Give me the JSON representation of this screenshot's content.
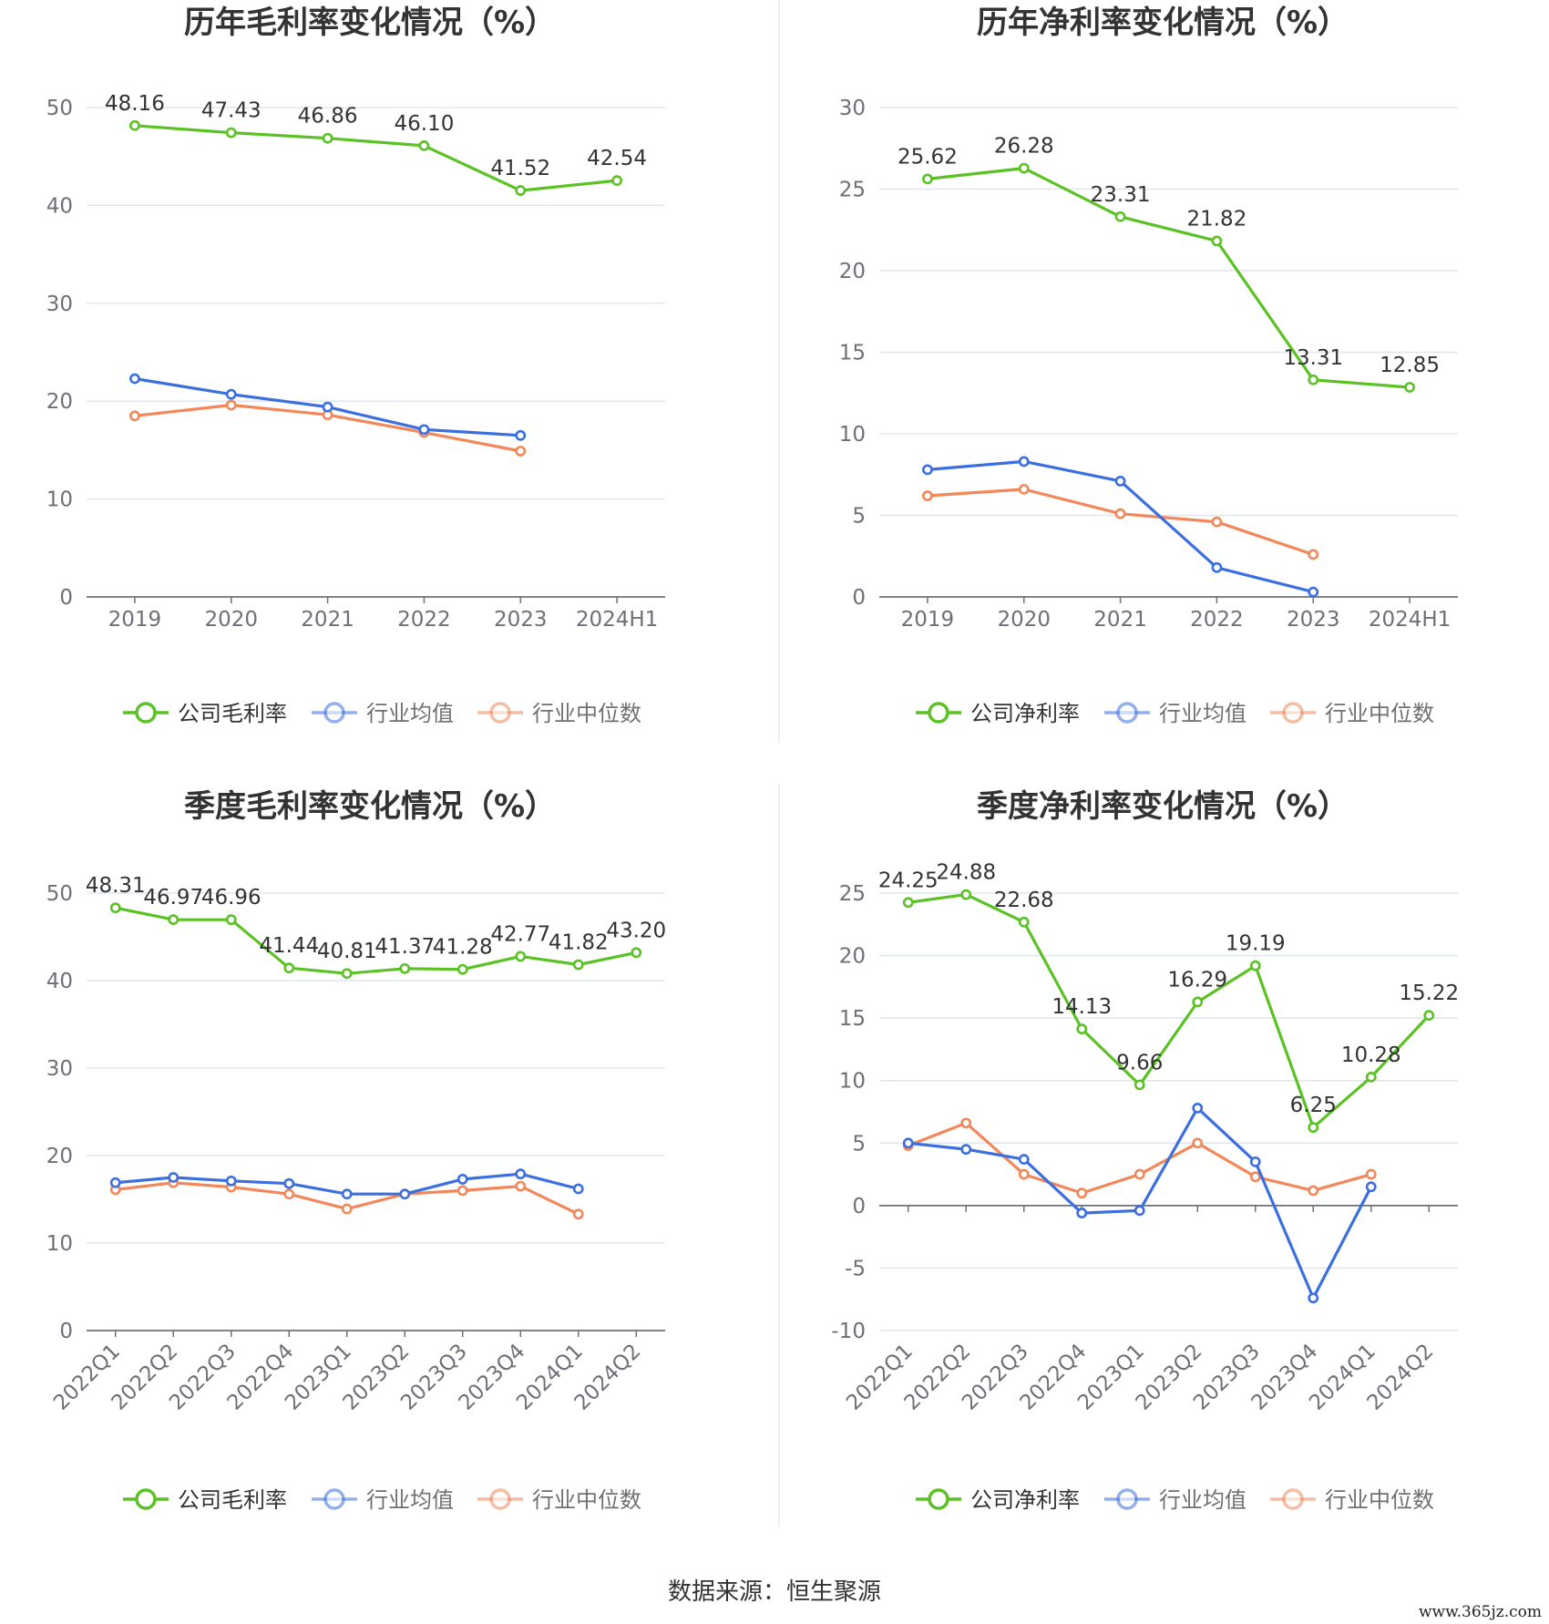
{
  "colors": {
    "company": "#5ac224",
    "average": "#3b6fe0",
    "median": "#f2875a",
    "grid": "#e0e6f1",
    "axis": "#6e7079"
  },
  "footer": {
    "source": "数据来源：恒生聚源"
  },
  "watermark": {
    "text": "www.365jz.com"
  },
  "chart_data": [
    {
      "type": "line",
      "title": "历年毛利率变化情况（%）",
      "categories": [
        "2019",
        "2020",
        "2021",
        "2022",
        "2023",
        "2024H1"
      ],
      "ylim": [
        0,
        50
      ],
      "yticks": [
        0,
        10,
        20,
        30,
        40,
        50
      ],
      "grid": true,
      "legend": "bottom",
      "series": [
        {
          "name": "公司毛利率",
          "role": "company",
          "labels": true,
          "values": [
            48.16,
            47.43,
            46.86,
            46.1,
            41.52,
            42.54
          ]
        },
        {
          "name": "行业均值",
          "role": "average",
          "labels": false,
          "values": [
            22.3,
            20.7,
            19.4,
            17.1,
            16.5,
            null
          ]
        },
        {
          "name": "行业中位数",
          "role": "median",
          "labels": false,
          "values": [
            18.5,
            19.6,
            18.6,
            16.8,
            14.9,
            null
          ]
        }
      ]
    },
    {
      "type": "line",
      "title": "历年净利率变化情况（%）",
      "categories": [
        "2019",
        "2020",
        "2021",
        "2022",
        "2023",
        "2024H1"
      ],
      "ylim": [
        0,
        30
      ],
      "yticks": [
        0,
        5,
        10,
        15,
        20,
        25,
        30
      ],
      "grid": true,
      "legend": "bottom",
      "series": [
        {
          "name": "公司净利率",
          "role": "company",
          "labels": true,
          "values": [
            25.62,
            26.28,
            23.31,
            21.82,
            13.31,
            12.85
          ]
        },
        {
          "name": "行业均值",
          "role": "average",
          "labels": false,
          "values": [
            7.8,
            8.3,
            7.1,
            1.8,
            0.3,
            null
          ]
        },
        {
          "name": "行业中位数",
          "role": "median",
          "labels": false,
          "values": [
            6.2,
            6.6,
            5.1,
            4.6,
            2.6,
            null
          ]
        }
      ]
    },
    {
      "type": "line",
      "title": "季度毛利率变化情况（%）",
      "categories": [
        "2022Q1",
        "2022Q2",
        "2022Q3",
        "2022Q4",
        "2023Q1",
        "2023Q2",
        "2023Q3",
        "2023Q4",
        "2024Q1",
        "2024Q2"
      ],
      "ylim": [
        0,
        50
      ],
      "yticks": [
        0,
        10,
        20,
        30,
        40,
        50
      ],
      "grid": true,
      "legend": "bottom",
      "series": [
        {
          "name": "公司毛利率",
          "role": "company",
          "labels": true,
          "values": [
            48.31,
            46.97,
            46.96,
            41.44,
            40.81,
            41.37,
            41.28,
            42.77,
            41.82,
            43.2
          ]
        },
        {
          "name": "行业均值",
          "role": "average",
          "labels": false,
          "values": [
            16.9,
            17.5,
            17.1,
            16.8,
            15.6,
            15.6,
            17.3,
            17.9,
            16.2,
            null
          ]
        },
        {
          "name": "行业中位数",
          "role": "median",
          "labels": false,
          "values": [
            16.1,
            16.9,
            16.4,
            15.6,
            13.9,
            15.6,
            16.0,
            16.5,
            13.3,
            null
          ]
        }
      ]
    },
    {
      "type": "line",
      "title": "季度净利率变化情况（%）",
      "categories": [
        "2022Q1",
        "2022Q2",
        "2022Q3",
        "2022Q4",
        "2023Q1",
        "2023Q2",
        "2023Q3",
        "2023Q4",
        "2024Q1",
        "2024Q2"
      ],
      "ylim": [
        -10,
        25
      ],
      "yticks": [
        -10,
        -5,
        0,
        5,
        10,
        15,
        20,
        25
      ],
      "grid": true,
      "legend": "bottom",
      "series": [
        {
          "name": "公司净利率",
          "role": "company",
          "labels": true,
          "values": [
            24.25,
            24.88,
            22.68,
            14.13,
            9.66,
            16.29,
            19.19,
            6.25,
            10.28,
            15.22
          ]
        },
        {
          "name": "行业均值",
          "role": "average",
          "labels": false,
          "values": [
            5.0,
            4.5,
            3.7,
            -0.6,
            -0.4,
            7.8,
            3.5,
            -7.4,
            1.5,
            null
          ]
        },
        {
          "name": "行业中位数",
          "role": "median",
          "labels": false,
          "values": [
            4.8,
            6.6,
            2.5,
            1.0,
            2.5,
            5.0,
            2.3,
            1.2,
            2.5,
            null
          ]
        }
      ]
    }
  ]
}
